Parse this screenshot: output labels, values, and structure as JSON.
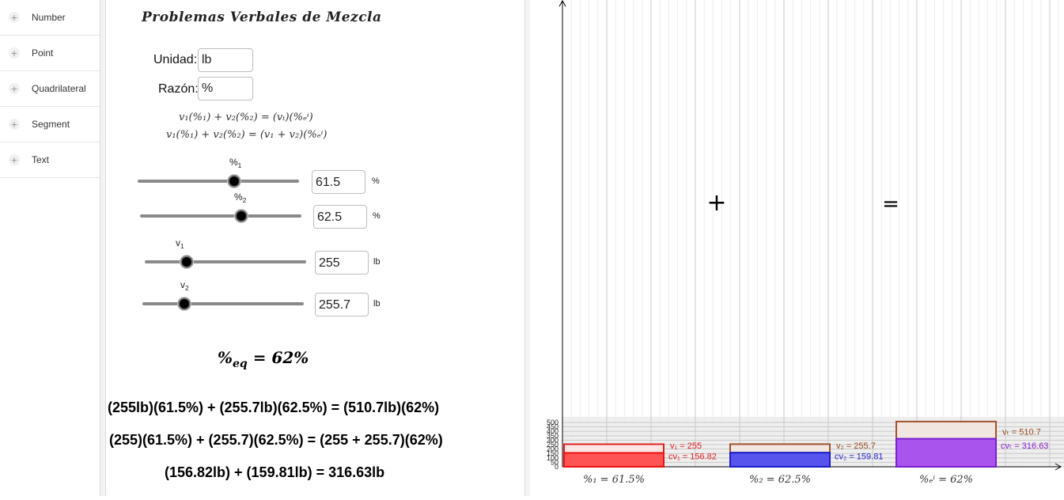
{
  "toolbox": {
    "items": [
      "Number",
      "Point",
      "Quadrilateral",
      "Segment",
      "Text"
    ],
    "plus_icon": "+"
  },
  "panel": {
    "title": "Problemas Verbales de Mezcla",
    "unidad": {
      "label": "Unidad:",
      "value": "lb"
    },
    "razon": {
      "label": "Razón:",
      "value": "%"
    },
    "formula1": "v₁(%₁) + v₂(%₂) = (vₜ)(%ₑⁱ)",
    "formula2": "v₁(%₁) + v₂(%₂) = (v₁ + v₂)(%ₑⁱ)",
    "sliders": [
      {
        "name": "%",
        "sub": "1",
        "value": "61.5",
        "unit": "%",
        "fraction": 0.6
      },
      {
        "name": "%",
        "sub": "2",
        "value": "62.5",
        "unit": "%",
        "fraction": 0.625
      },
      {
        "name": "v",
        "sub": "1",
        "value": "255",
        "unit": "lb",
        "fraction": 0.26
      },
      {
        "name": "v",
        "sub": "2",
        "value": "255.7",
        "unit": "lb",
        "fraction": 0.26
      }
    ],
    "peq_label": "%",
    "peq_sub": "eq",
    "peq_value": "= 62%",
    "equation1": "(255lb)(61.5%) + (255.7lb)(62.5%) = (510.7lb)(62%)",
    "equation2": "(255)(61.5%) + (255.7)(62.5%) = (255 + 255.7)(62%)",
    "equation3": "(156.82lb) + (159.81lb) = 316.63lb"
  },
  "chart_data": {
    "type": "bar",
    "ylim": [
      0,
      520
    ],
    "yticks": [
      0,
      50,
      100,
      150,
      200,
      250,
      300,
      350,
      400,
      450,
      500
    ],
    "grid": true,
    "operators": [
      "+",
      "="
    ],
    "bars": [
      {
        "category": "%₁ = 61.5%",
        "total": 255,
        "portion": 156.82,
        "total_label": "v₁ = 255",
        "portion_label": "cv₁ = 156.82",
        "fill": "#ff3333",
        "stroke": "#ee1111",
        "total_color": "#e02020",
        "portion_color": "#e02020",
        "outline_color": "#e02020",
        "light_fill": "#fbe6e6"
      },
      {
        "category": "%₂ = 62.5%",
        "total": 255.7,
        "portion": 159.81,
        "total_label": "v₂ = 255.7",
        "portion_label": "cv₂ = 159.81",
        "fill": "#3333ee",
        "stroke": "#1c1cc8",
        "total_color": "#9a4a1a",
        "portion_color": "#2222c8",
        "outline_color": "#a0522d",
        "light_fill": "#f1e6e0"
      },
      {
        "category": "%ₑⁱ = 62%",
        "total": 510.7,
        "portion": 316.63,
        "total_label": "vₜ = 510.7",
        "portion_label": "cvₜ = 316.63",
        "fill": "#9933ee",
        "stroke": "#7a1fcc",
        "total_color": "#9a4a1a",
        "portion_color": "#8a1fd0",
        "outline_color": "#a0522d",
        "light_fill": "#f1e6e0"
      }
    ]
  }
}
